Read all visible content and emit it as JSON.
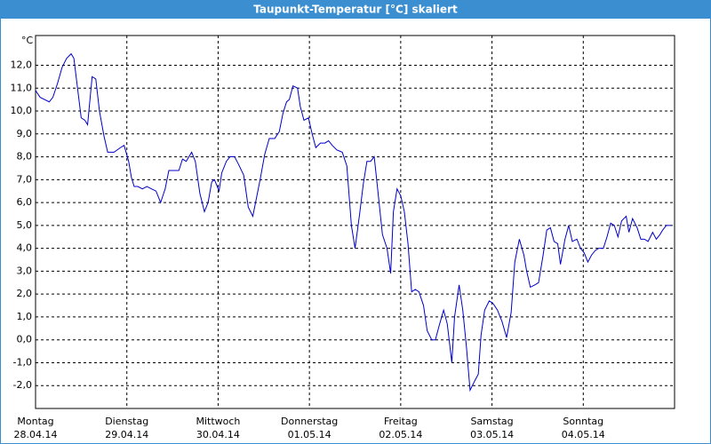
{
  "chart_data": {
    "type": "line",
    "title": "Taupunkt-Temperatur [°C] skaliert",
    "y_label": "°C",
    "color": "#0000c8",
    "grid": true,
    "xlim": [
      0,
      7
    ],
    "ylim": [
      -3,
      13.3
    ],
    "xticks": [
      {
        "value": 0,
        "label": "Montag",
        "sublabel": "28.04.14"
      },
      {
        "value": 1,
        "label": "Dienstag",
        "sublabel": "29.04.14"
      },
      {
        "value": 2,
        "label": "Mittwoch",
        "sublabel": "30.04.14"
      },
      {
        "value": 3,
        "label": "Donnerstag",
        "sublabel": "01.05.14"
      },
      {
        "value": 4,
        "label": "Freitag",
        "sublabel": "02.05.14"
      },
      {
        "value": 5,
        "label": "Samstag",
        "sublabel": "03.05.14"
      },
      {
        "value": 6,
        "label": "Sonntag",
        "sublabel": "04.05.14"
      }
    ],
    "yticks": [
      {
        "value": 12,
        "label": "12,0"
      },
      {
        "value": 11,
        "label": "11,0"
      },
      {
        "value": 10,
        "label": "10,0"
      },
      {
        "value": 9,
        "label": "9,0"
      },
      {
        "value": 8,
        "label": "8,0"
      },
      {
        "value": 7,
        "label": "7,0"
      },
      {
        "value": 6,
        "label": "6,0"
      },
      {
        "value": 5,
        "label": "5,0"
      },
      {
        "value": 4,
        "label": "4,0"
      },
      {
        "value": 3,
        "label": "3,0"
      },
      {
        "value": 2,
        "label": "2,0"
      },
      {
        "value": 1,
        "label": "1,0"
      },
      {
        "value": 0,
        "label": "0,0"
      },
      {
        "value": -1,
        "label": "-1,0"
      },
      {
        "value": -2,
        "label": "-2,0"
      }
    ],
    "x": [
      0,
      0.05,
      0.15,
      0.19,
      0.24,
      0.29,
      0.34,
      0.39,
      0.42,
      0.46,
      0.5,
      0.54,
      0.57,
      0.62,
      0.66,
      0.7,
      0.75,
      0.79,
      0.86,
      0.93,
      0.97,
      1.02,
      1.05,
      1.08,
      1.12,
      1.17,
      1.22,
      1.27,
      1.32,
      1.37,
      1.42,
      1.46,
      1.53,
      1.57,
      1.61,
      1.65,
      1.68,
      1.71,
      1.75,
      1.8,
      1.85,
      1.89,
      1.93,
      1.96,
      2.01,
      2.04,
      2.09,
      2.13,
      2.18,
      2.22,
      2.28,
      2.33,
      2.38,
      2.41,
      2.46,
      2.51,
      2.56,
      2.62,
      2.67,
      2.71,
      2.75,
      2.78,
      2.82,
      2.87,
      2.9,
      2.94,
      2.99,
      3.03,
      3.07,
      3.12,
      3.17,
      3.21,
      3.25,
      3.3,
      3.36,
      3.41,
      3.46,
      3.5,
      3.55,
      3.59,
      3.63,
      3.67,
      3.71,
      3.75,
      3.8,
      3.85,
      3.89,
      3.92,
      3.96,
      4.0,
      4.04,
      4.08,
      4.12,
      4.16,
      4.2,
      4.25,
      4.29,
      4.34,
      4.38,
      4.42,
      4.47,
      4.51,
      4.56,
      4.59,
      4.64,
      4.68,
      4.72,
      4.76,
      4.81,
      4.85,
      4.88,
      4.92,
      4.97,
      5.01,
      5.06,
      5.11,
      5.16,
      5.21,
      5.25,
      5.3,
      5.35,
      5.38,
      5.42,
      5.47,
      5.51,
      5.56,
      5.6,
      5.64,
      5.68,
      5.72,
      5.75,
      5.8,
      5.84,
      5.88,
      5.93,
      5.97,
      6.01,
      6.05,
      6.09,
      6.13,
      6.17,
      6.22,
      6.26,
      6.3,
      6.34,
      6.38,
      6.42,
      6.47,
      6.5,
      6.54,
      6.59,
      6.63,
      6.67,
      6.71,
      6.76,
      6.8,
      6.84,
      6.87,
      6.91,
      6.96
    ],
    "values": [
      10.9,
      10.6,
      10.4,
      10.6,
      11.2,
      11.9,
      12.3,
      12.5,
      12.3,
      11.0,
      9.7,
      9.6,
      9.4,
      11.5,
      11.4,
      10.0,
      8.9,
      8.2,
      8.2,
      8.4,
      8.5,
      7.8,
      7.1,
      6.7,
      6.7,
      6.6,
      6.7,
      6.6,
      6.5,
      6.0,
      6.6,
      7.4,
      7.4,
      7.4,
      7.9,
      7.8,
      8.0,
      8.2,
      7.8,
      6.4,
      5.6,
      6.0,
      6.9,
      7.0,
      6.5,
      7.3,
      7.8,
      8.0,
      8.0,
      7.7,
      7.2,
      5.8,
      5.4,
      6.0,
      7.0,
      8.1,
      8.8,
      8.8,
      9.1,
      9.9,
      10.4,
      10.5,
      11.1,
      11.0,
      10.2,
      9.6,
      9.7,
      9.0,
      8.4,
      8.6,
      8.6,
      8.7,
      8.5,
      8.3,
      8.2,
      7.6,
      5.0,
      4.0,
      5.5,
      6.8,
      7.8,
      7.8,
      8.0,
      6.5,
      4.6,
      4.0,
      2.9,
      5.6,
      6.6,
      6.3,
      5.6,
      4.2,
      2.1,
      2.2,
      2.1,
      1.5,
      0.4,
      0.0,
      0.0,
      0.6,
      1.3,
      0.7,
      -1.0,
      1.0,
      2.4,
      1.3,
      -0.3,
      -2.2,
      -1.8,
      -1.5,
      0.2,
      1.3,
      1.7,
      1.6,
      1.3,
      0.8,
      0.1,
      1.2,
      3.4,
      4.4,
      3.7,
      3.0,
      2.3,
      2.4,
      2.5,
      3.7,
      4.8,
      4.9,
      4.3,
      4.2,
      3.3,
      4.4,
      5.0,
      4.3,
      4.4,
      4.0,
      3.8,
      3.4,
      3.7,
      3.9,
      4.0,
      4.0,
      4.5,
      5.1,
      5.0,
      4.5,
      5.2,
      5.4,
      4.7,
      5.3,
      4.9,
      4.4,
      4.4,
      4.3,
      4.7,
      4.4,
      4.6,
      4.8,
      5.0,
      5.0
    ]
  }
}
